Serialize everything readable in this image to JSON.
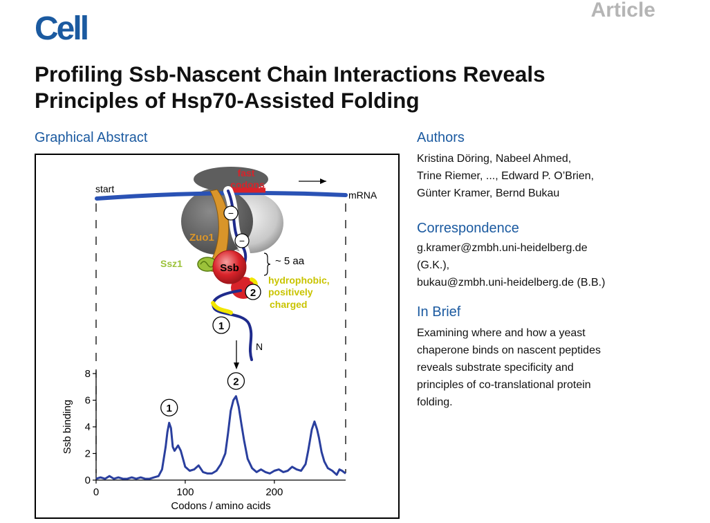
{
  "header": {
    "journal": "Cell",
    "article_type": "Article"
  },
  "title_lines": [
    "Profiling Ssb-Nascent Chain Interactions Reveals",
    "Principles of Hsp70-Assisted Folding"
  ],
  "graphical_abstract": {
    "heading": "Graphical Abstract",
    "labels": {
      "start": "start",
      "mrna": "mRNA",
      "fast": "fast",
      "codons": "codons",
      "zuo1": "Zuo1",
      "ssz1": "Ssz1",
      "ssb": "Ssb",
      "spacing": "~ 5 aa",
      "hydrophobic": "hydrophobic,",
      "positively": "positively",
      "charged": "charged",
      "n_terminus": "N",
      "site1": "1",
      "site2": "2",
      "minus": "−"
    },
    "colors": {
      "mrna": "#2a52b5",
      "chain": "#1f2b8c",
      "zuo1": "#d9952a",
      "ssz1": "#9cc23a",
      "ssb": "#d8232a",
      "binding_site": "#f2e600",
      "label_red": "#d8232a",
      "label_yellow": "#c9c400",
      "ribosome": "#6e6e6e"
    }
  },
  "chart_data": {
    "type": "line",
    "xlabel": "Codons / amino acids",
    "ylabel": "Ssb binding",
    "xlim": [
      0,
      280
    ],
    "ylim": [
      0,
      8
    ],
    "xticks": [
      0,
      100,
      200
    ],
    "yticks": [
      0,
      2,
      4,
      6,
      8
    ],
    "annotations": [
      {
        "label": "1",
        "x": 82
      },
      {
        "label": "2",
        "x": 157
      }
    ],
    "series": [
      {
        "x": [
          0,
          5,
          10,
          15,
          20,
          25,
          30,
          35,
          40,
          45,
          50,
          55,
          60,
          65,
          70,
          74,
          78,
          80,
          82,
          84,
          86,
          88,
          92,
          95,
          100,
          105,
          110,
          115,
          120,
          125,
          130,
          135,
          140,
          145,
          148,
          151,
          154,
          157,
          160,
          163,
          166,
          170,
          175,
          180,
          185,
          190,
          195,
          200,
          205,
          210,
          215,
          220,
          225,
          230,
          235,
          238,
          242,
          245,
          248,
          250,
          253,
          256,
          260,
          265,
          270,
          273,
          276,
          280
        ],
        "y": [
          0.1,
          0.2,
          0.1,
          0.3,
          0.1,
          0.2,
          0.1,
          0.1,
          0.2,
          0.1,
          0.2,
          0.1,
          0.1,
          0.2,
          0.3,
          0.8,
          2.5,
          3.6,
          4.3,
          3.9,
          2.5,
          2.2,
          2.6,
          2.2,
          1.0,
          0.7,
          0.8,
          1.1,
          0.6,
          0.5,
          0.5,
          0.7,
          1.2,
          2.0,
          3.5,
          5.2,
          6.0,
          6.3,
          5.5,
          4.2,
          3.0,
          1.6,
          0.9,
          0.6,
          0.8,
          0.6,
          0.5,
          0.7,
          0.8,
          0.6,
          0.7,
          1.0,
          0.8,
          0.7,
          1.2,
          2.2,
          3.8,
          4.4,
          3.8,
          3.2,
          2.1,
          1.4,
          0.9,
          0.7,
          0.4,
          0.8,
          0.7,
          0.5
        ]
      }
    ]
  },
  "authors": {
    "heading": "Authors",
    "lines": [
      "Kristina Döring, Nabeel Ahmed,",
      "Trine Riemer, ..., Edward P. O’Brien,",
      "Günter Kramer, Bernd Bukau"
    ]
  },
  "correspondence": {
    "heading": "Correspondence",
    "lines": [
      "g.kramer@zmbh.uni-heidelberg.de",
      "(G.K.),",
      "bukau@zmbh.uni-heidelberg.de (B.B.)"
    ]
  },
  "in_brief": {
    "heading": "In Brief",
    "lines": [
      "Examining where and how a yeast",
      "chaperone binds on nascent peptides",
      "reveals substrate specificity and",
      "principles of co-translational protein",
      "folding."
    ]
  }
}
